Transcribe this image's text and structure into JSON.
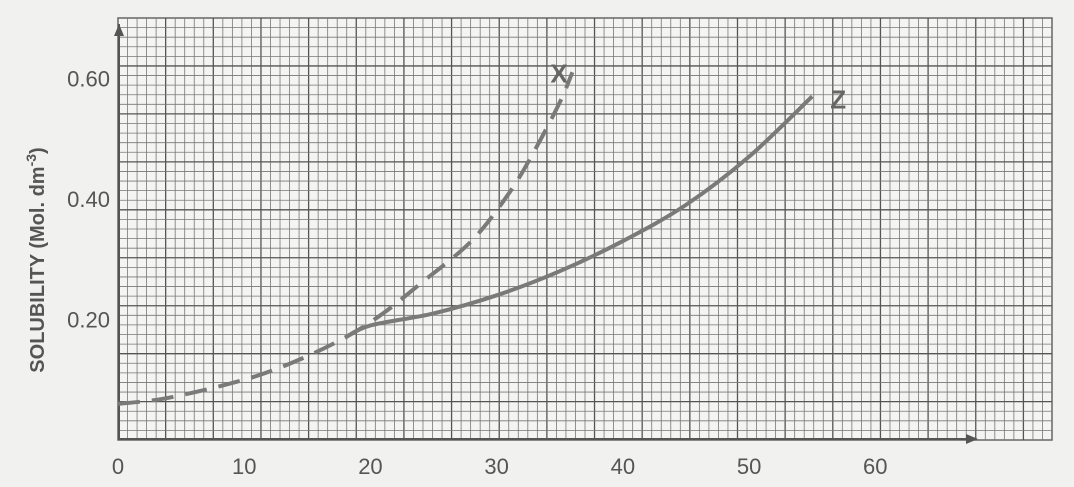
{
  "chart_data": {
    "type": "line",
    "title": "",
    "xlabel": "",
    "ylabel": "SOLUBILITY (Mol. dm-3)",
    "ylabel_main": "SOLUBILITY (Mol. dm",
    "ylabel_sup": "-3",
    "ylabel_end": ")",
    "xlim": [
      0,
      74
    ],
    "ylim": [
      0,
      0.7
    ],
    "grid": true,
    "xticks": [
      0,
      10,
      20,
      30,
      40,
      50,
      60
    ],
    "xtick_labels": [
      "0",
      "10",
      "20",
      "30",
      "40",
      "50",
      "60"
    ],
    "yticks": [
      0.2,
      0.4,
      0.6
    ],
    "ytick_labels": [
      "0.20",
      "0.40",
      "0.60"
    ],
    "series": [
      {
        "name": "X",
        "style": "dashed",
        "color": "#7a7a7a",
        "x": [
          0,
          4,
          10,
          14,
          18,
          21,
          24,
          28,
          31,
          33,
          35,
          36
        ],
        "y": [
          0.06,
          0.07,
          0.1,
          0.13,
          0.17,
          0.21,
          0.26,
          0.33,
          0.41,
          0.48,
          0.56,
          0.61
        ]
      },
      {
        "name": "Z",
        "style": "solid",
        "color": "#7a7a7a",
        "x": [
          18,
          20,
          25,
          30,
          35,
          40,
          45,
          50,
          55
        ],
        "y": [
          0.17,
          0.19,
          0.21,
          0.24,
          0.28,
          0.33,
          0.39,
          0.47,
          0.57
        ]
      }
    ]
  }
}
